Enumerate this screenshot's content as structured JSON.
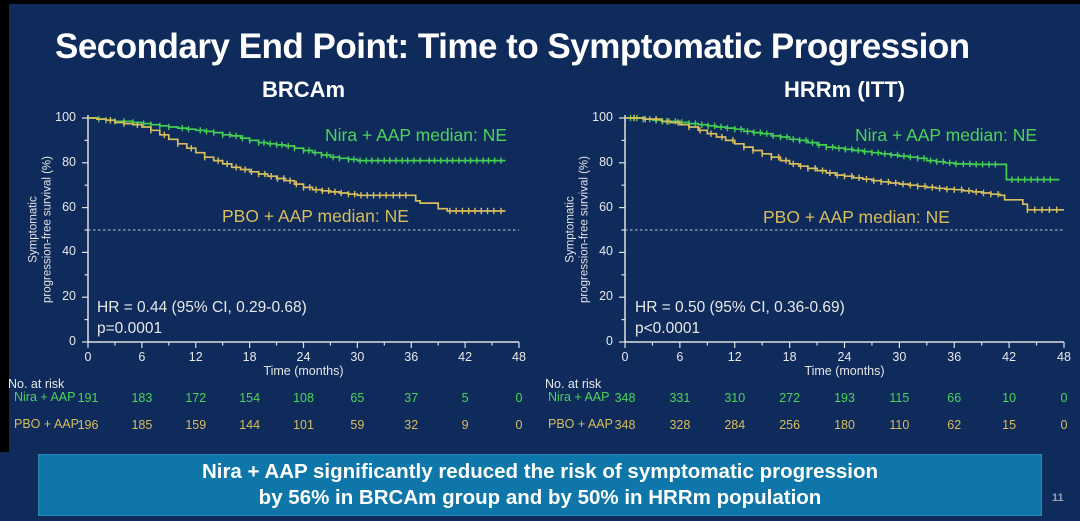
{
  "slide": {
    "title": "Secondary End Point: Time to Symptomatic Progression",
    "page_number": "11"
  },
  "banner": {
    "line1": "Nira + AAP significantly reduced the risk of symptomatic progression",
    "line2": "by 56% in BRCAm group and by 50% in HRRm population",
    "bg_color": "#0E76A8"
  },
  "colors": {
    "background": "#0E2B5C",
    "axis": "#E0E0E0",
    "nira_green": "#44CF52",
    "pbo_yellow": "#D8BD5C",
    "reference_dashed": "#C3C9D2",
    "banner_blue": "#0E76A8"
  },
  "chart_data": [
    {
      "type": "line",
      "subtype": "kaplan-meier",
      "title": "BRCAm",
      "ylabel": "Symptomatic\nprogression-free survival (%)",
      "xlabel": "Time (months)",
      "xlim": [
        0,
        48
      ],
      "ylim": [
        0,
        100
      ],
      "xticks": [
        0,
        6,
        12,
        18,
        24,
        30,
        36,
        42,
        48
      ],
      "yticks": [
        0,
        20,
        40,
        60,
        80,
        100
      ],
      "reference_line_y": 50,
      "hr_text": "HR = 0.44 (95% CI, 0.29-0.68)",
      "p_text": "p=0.0001",
      "series": [
        {
          "name": "Nira + AAP",
          "annotation": "Nira + AAP median: NE",
          "color": "#44CF52",
          "points": [
            [
              0,
              100
            ],
            [
              1,
              99.5
            ],
            [
              2,
              99
            ],
            [
              3,
              98.5
            ],
            [
              5,
              98
            ],
            [
              6,
              97.5
            ],
            [
              7,
              97
            ],
            [
              8,
              96.5
            ],
            [
              9,
              96
            ],
            [
              10,
              95.5
            ],
            [
              11,
              95
            ],
            [
              12,
              94.5
            ],
            [
              13,
              94
            ],
            [
              14,
              93.5
            ],
            [
              15,
              92.5
            ],
            [
              16,
              92
            ],
            [
              17,
              91
            ],
            [
              18,
              90
            ],
            [
              19,
              89
            ],
            [
              20,
              88.5
            ],
            [
              21,
              88
            ],
            [
              22,
              87.5
            ],
            [
              23,
              86.5
            ],
            [
              24,
              85.5
            ],
            [
              25,
              84.5
            ],
            [
              26,
              83.5
            ],
            [
              27,
              82.5
            ],
            [
              28,
              82
            ],
            [
              29,
              81.5
            ],
            [
              30,
              81
            ],
            [
              46.5,
              81
            ]
          ],
          "censor_months": [
            1.2,
            2,
            3,
            4,
            5,
            6.2,
            7,
            8,
            9,
            10.5,
            11.2,
            12.5,
            13.2,
            14,
            15,
            15.8,
            16.5,
            17.2,
            18,
            19,
            19.6,
            20.3,
            21,
            21.6,
            22.3,
            23,
            24,
            24.6,
            25.3,
            26,
            26.6,
            27.3,
            28,
            29,
            29.6,
            30.3,
            31,
            31.6,
            32.3,
            33,
            33.6,
            34.3,
            35,
            35.6,
            36.3,
            37,
            38,
            38.6,
            39.3,
            40,
            40.6,
            41.3,
            42,
            42.6,
            43.3,
            44,
            44.6,
            45.3,
            46
          ]
        },
        {
          "name": "PBO + AAP",
          "annotation": "PBO + AAP median: NE",
          "color": "#D8BD5C",
          "points": [
            [
              0,
              100
            ],
            [
              1,
              99.5
            ],
            [
              2,
              99
            ],
            [
              3,
              98
            ],
            [
              4,
              97.5
            ],
            [
              5,
              97
            ],
            [
              6,
              96
            ],
            [
              7,
              94.5
            ],
            [
              8,
              92.5
            ],
            [
              9,
              90.5
            ],
            [
              10,
              88.5
            ],
            [
              11,
              86.5
            ],
            [
              12,
              84.5
            ],
            [
              13,
              82.5
            ],
            [
              14,
              81
            ],
            [
              15,
              79.5
            ],
            [
              16,
              78
            ],
            [
              17,
              77
            ],
            [
              18,
              76
            ],
            [
              19,
              75
            ],
            [
              20,
              74
            ],
            [
              21,
              73
            ],
            [
              22,
              72
            ],
            [
              23,
              70.5
            ],
            [
              24,
              69
            ],
            [
              25,
              68
            ],
            [
              26,
              67.5
            ],
            [
              27,
              67
            ],
            [
              28,
              66.5
            ],
            [
              29,
              66
            ],
            [
              30,
              65.5
            ],
            [
              36,
              65.5
            ],
            [
              36.5,
              63
            ],
            [
              37,
              62
            ],
            [
              38.5,
              62
            ],
            [
              39,
              59.5
            ],
            [
              40,
              58.5
            ],
            [
              46.5,
              58.5
            ]
          ],
          "censor_months": [
            2.5,
            4,
            5.5,
            7,
            8.5,
            10,
            11.5,
            13,
            14.5,
            15.5,
            16.5,
            17.5,
            18.2,
            19,
            19.7,
            20.4,
            21.1,
            21.8,
            22.5,
            23.2,
            24,
            24.7,
            25.4,
            26.1,
            26.8,
            27.5,
            28.2,
            29,
            29.7,
            30.4,
            31.1,
            31.8,
            32.5,
            33.2,
            34,
            34.7,
            35.4,
            40.3,
            41,
            41.7,
            42.4,
            43.1,
            43.8,
            44.5,
            45.2,
            46
          ]
        }
      ],
      "at_risk": {
        "label": "No. at risk",
        "time_points": [
          0,
          6,
          12,
          18,
          24,
          30,
          36,
          42,
          48
        ],
        "rows": [
          {
            "name": "Nira + AAP",
            "values": [
              191,
              183,
              172,
              154,
              108,
              65,
              37,
              5,
              0
            ]
          },
          {
            "name": "PBO + AAP",
            "values": [
              196,
              185,
              159,
              144,
              101,
              59,
              32,
              9,
              0
            ]
          }
        ]
      }
    },
    {
      "type": "line",
      "subtype": "kaplan-meier",
      "title": "HRRm (ITT)",
      "ylabel": "Symptomatic\nprogression-free survival (%)",
      "xlabel": "Time (months)",
      "xlim": [
        0,
        48
      ],
      "ylim": [
        0,
        100
      ],
      "xticks": [
        0,
        6,
        12,
        18,
        24,
        30,
        36,
        42,
        48
      ],
      "yticks": [
        0,
        20,
        40,
        60,
        80,
        100
      ],
      "reference_line_y": 50,
      "hr_text": "HR = 0.50 (95% CI, 0.36-0.69)",
      "p_text": "p<0.0001",
      "series": [
        {
          "name": "Nira + AAP",
          "annotation": "Nira + AAP median: NE",
          "color": "#44CF52",
          "points": [
            [
              0,
              100
            ],
            [
              2,
              99.5
            ],
            [
              3,
              99
            ],
            [
              4,
              98.5
            ],
            [
              6,
              98
            ],
            [
              7,
              97.5
            ],
            [
              8,
              97
            ],
            [
              9,
              96.5
            ],
            [
              10,
              96
            ],
            [
              11,
              95.5
            ],
            [
              12,
              95
            ],
            [
              13,
              94
            ],
            [
              14,
              93.5
            ],
            [
              15,
              93
            ],
            [
              16,
              92
            ],
            [
              17,
              91.5
            ],
            [
              18,
              90.5
            ],
            [
              19,
              90
            ],
            [
              20,
              89
            ],
            [
              21,
              88
            ],
            [
              22,
              87
            ],
            [
              23,
              86.5
            ],
            [
              24,
              86
            ],
            [
              25,
              85.5
            ],
            [
              26,
              85
            ],
            [
              27,
              84.5
            ],
            [
              28,
              84
            ],
            [
              29,
              83.5
            ],
            [
              30,
              83
            ],
            [
              31,
              82.5
            ],
            [
              32,
              82
            ],
            [
              33,
              81
            ],
            [
              34,
              80.5
            ],
            [
              35,
              80
            ],
            [
              36,
              79.5
            ],
            [
              38,
              79.3
            ],
            [
              41.3,
              79.3
            ],
            [
              41.7,
              72.5
            ],
            [
              47.5,
              72.5
            ]
          ],
          "censor_months": [
            0.6,
            1.3,
            2,
            2.7,
            3.4,
            4.1,
            4.8,
            5.5,
            6.2,
            7,
            7.7,
            8.4,
            9.1,
            9.8,
            10.5,
            11.2,
            12,
            12.7,
            13.4,
            14.1,
            14.8,
            15.5,
            16.2,
            17,
            17.7,
            18.4,
            19.1,
            19.8,
            20.5,
            21.2,
            22,
            22.7,
            23.4,
            24.1,
            24.8,
            25.5,
            26.2,
            27,
            27.7,
            28.4,
            29.1,
            29.8,
            30.5,
            31.2,
            32,
            32.7,
            33.4,
            34.1,
            34.8,
            35.5,
            36.2,
            37,
            37.7,
            38.4,
            39.1,
            39.8,
            40.5,
            42.3,
            43,
            43.7,
            44.4,
            45.1,
            45.8,
            46.5
          ]
        },
        {
          "name": "PBO + AAP",
          "annotation": "PBO + AAP median: NE",
          "color": "#D8BD5C",
          "points": [
            [
              0,
              100
            ],
            [
              2,
              99.5
            ],
            [
              4,
              98.5
            ],
            [
              5,
              98
            ],
            [
              6,
              97
            ],
            [
              7,
              96
            ],
            [
              8,
              94.5
            ],
            [
              9,
              93
            ],
            [
              10,
              91.5
            ],
            [
              11,
              90
            ],
            [
              12,
              88.5
            ],
            [
              13,
              87
            ],
            [
              14,
              85.5
            ],
            [
              15,
              84
            ],
            [
              16,
              82.5
            ],
            [
              17,
              81
            ],
            [
              18,
              79.5
            ],
            [
              19,
              78.5
            ],
            [
              20,
              77.5
            ],
            [
              21,
              76.5
            ],
            [
              22,
              75.5
            ],
            [
              23,
              74.5
            ],
            [
              24,
              74
            ],
            [
              25,
              73.3
            ],
            [
              26,
              72.7
            ],
            [
              27,
              72
            ],
            [
              28,
              71.5
            ],
            [
              29,
              71
            ],
            [
              30,
              70.5
            ],
            [
              31,
              70
            ],
            [
              32,
              69.5
            ],
            [
              33,
              69
            ],
            [
              34,
              68.6
            ],
            [
              35,
              68.2
            ],
            [
              36,
              68
            ],
            [
              37,
              67.5
            ],
            [
              38,
              67
            ],
            [
              39,
              66.5
            ],
            [
              40,
              66
            ],
            [
              41,
              65.5
            ],
            [
              41.5,
              63.5
            ],
            [
              43,
              63.5
            ],
            [
              43.5,
              61.5
            ],
            [
              44,
              59
            ],
            [
              48,
              59
            ]
          ],
          "censor_months": [
            1,
            2.2,
            3.4,
            4.6,
            5.8,
            7,
            8.2,
            9.4,
            10.6,
            11.8,
            13,
            14,
            15,
            16,
            16.8,
            17.6,
            18.4,
            19.2,
            20,
            20.8,
            21.6,
            22.4,
            23.2,
            24,
            24.8,
            25.6,
            26.4,
            27.2,
            28,
            28.8,
            29.6,
            30.4,
            31.2,
            32,
            32.8,
            33.6,
            34.4,
            35.2,
            36,
            36.8,
            37.6,
            38.4,
            39.2,
            40,
            40.8,
            44,
            44.8,
            45.6,
            46.4,
            47.2
          ]
        }
      ],
      "at_risk": {
        "label": "No. at risk",
        "time_points": [
          0,
          6,
          12,
          18,
          24,
          30,
          36,
          42,
          48
        ],
        "rows": [
          {
            "name": "Nira + AAP",
            "values": [
              348,
              331,
              310,
              272,
              193,
              115,
              66,
              10,
              0
            ]
          },
          {
            "name": "PBO + AAP",
            "values": [
              348,
              328,
              284,
              256,
              180,
              110,
              62,
              15,
              0
            ]
          }
        ]
      }
    }
  ]
}
